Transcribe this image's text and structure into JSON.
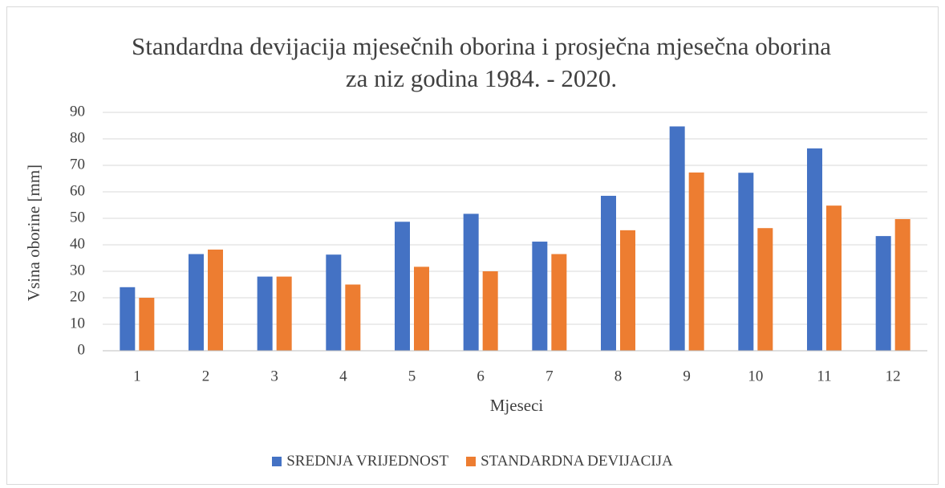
{
  "chart_data": {
    "type": "bar",
    "title": "Standardna devijacija mjesečnih oborina i prosječna mjesečna oborina za niz godina 1984. - 2020.",
    "x_label": "Mjeseci",
    "y_label": "Vsina oborine [mm]",
    "categories": [
      "1",
      "2",
      "3",
      "4",
      "5",
      "6",
      "7",
      "8",
      "9",
      "10",
      "11",
      "12"
    ],
    "series": [
      {
        "name": "SREDNJA VRIJEDNOST",
        "color": "#4472c4",
        "values": [
          24,
          36.5,
          28,
          36.3,
          48.7,
          51.7,
          41.2,
          58.5,
          84.7,
          67.2,
          76.4,
          43.3
        ]
      },
      {
        "name": "STANDARDNA DEVIJACIJA",
        "color": "#ed7d31",
        "values": [
          20,
          38.2,
          28,
          25,
          31.7,
          30,
          36.5,
          45.5,
          67.3,
          46.3,
          54.8,
          49.7
        ]
      }
    ],
    "ylim": [
      0,
      90
    ],
    "yticks": [
      0,
      10,
      20,
      30,
      40,
      50,
      60,
      70,
      80,
      90
    ],
    "grid": true,
    "legend": "bottom"
  }
}
